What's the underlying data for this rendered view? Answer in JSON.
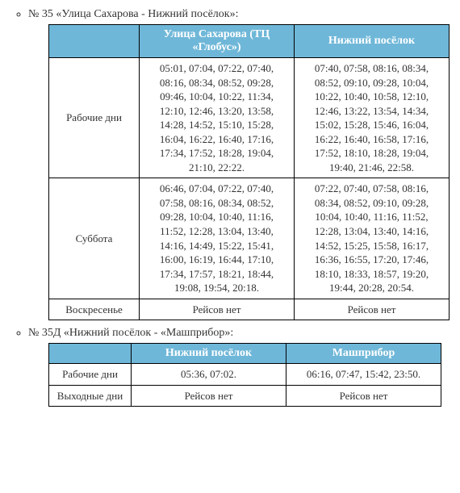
{
  "routes": [
    {
      "title": "№ 35 «Улица Сахарова - Нижний посёлок»:",
      "headers": [
        "",
        "Улица Сахарова (ТЦ «Глобус»)",
        "Нижний посёлок"
      ],
      "col_widths": [
        "95px",
        "175px",
        "175px"
      ],
      "rows": [
        {
          "label": "Рабочие дни",
          "cells": [
            "05:01, 07:04, 07:22, 07:40, 08:16, 08:34, 08:52, 09:28, 09:46, 10:04, 10:22, 11:34, 12:10, 12:46, 13:20, 13:58, 14:28, 14:52, 15:10, 15:28, 16:04, 16:22, 16:40, 17:16, 17:34, 17:52, 18:28, 19:04, 21:10, 22:22.",
            "07:40, 07:58, 08:16, 08:34, 08:52, 09:10, 09:28, 10:04, 10:22, 10:40, 10:58, 12:10, 12:46, 13:22, 13:54, 14:34, 15:02, 15:28, 15:46, 16:04, 16:22, 16:40, 16:58, 17:16, 17:52, 18:10, 18:28, 19:04, 19:40, 21:46, 22:58."
          ]
        },
        {
          "label": "Суббота",
          "cells": [
            "06:46, 07:04, 07:22, 07:40, 07:58, 08:16, 08:34, 08:52, 09:28, 10:04, 10:40, 11:16, 11:52, 12:28, 13:04, 13:40, 14:16, 14:49, 15:22, 15:41, 16:00, 16:19, 16:44, 17:10, 17:34, 17:57, 18:21, 18:44, 19:08, 19:54, 20:18.",
            "07:22, 07:40, 07:58, 08:16, 08:34, 08:52, 09:10, 09:28, 10:04, 10:40, 11:16, 11:52, 12:28, 13:04, 13:40, 14:16, 14:52, 15:25, 15:58, 16:17, 16:36, 16:55, 17:20, 17:46, 18:10, 18:33, 18:57, 19:20, 19:44, 20:28, 20:54."
          ]
        },
        {
          "label": "Воскресенье",
          "cells": [
            "Рейсов нет",
            "Рейсов нет"
          ]
        }
      ]
    },
    {
      "title": "№ 35Д «Нижний посёлок - «Машприбор»:",
      "headers": [
        "",
        "Нижний посёлок",
        "Машприбор"
      ],
      "col_widths": [
        "85px",
        "175px",
        "175px"
      ],
      "rows": [
        {
          "label": "Рабочие дни",
          "cells": [
            "05:36, 07:02.",
            "06:16, 07:47, 15:42, 23:50."
          ]
        },
        {
          "label": "Выходные дни",
          "cells": [
            "Рейсов нет",
            "Рейсов нет"
          ]
        }
      ]
    }
  ],
  "style": {
    "header_bg": "#6fb7d8",
    "header_fg": "#ffffff",
    "border_color": "#000000",
    "body_font": "Times New Roman"
  }
}
